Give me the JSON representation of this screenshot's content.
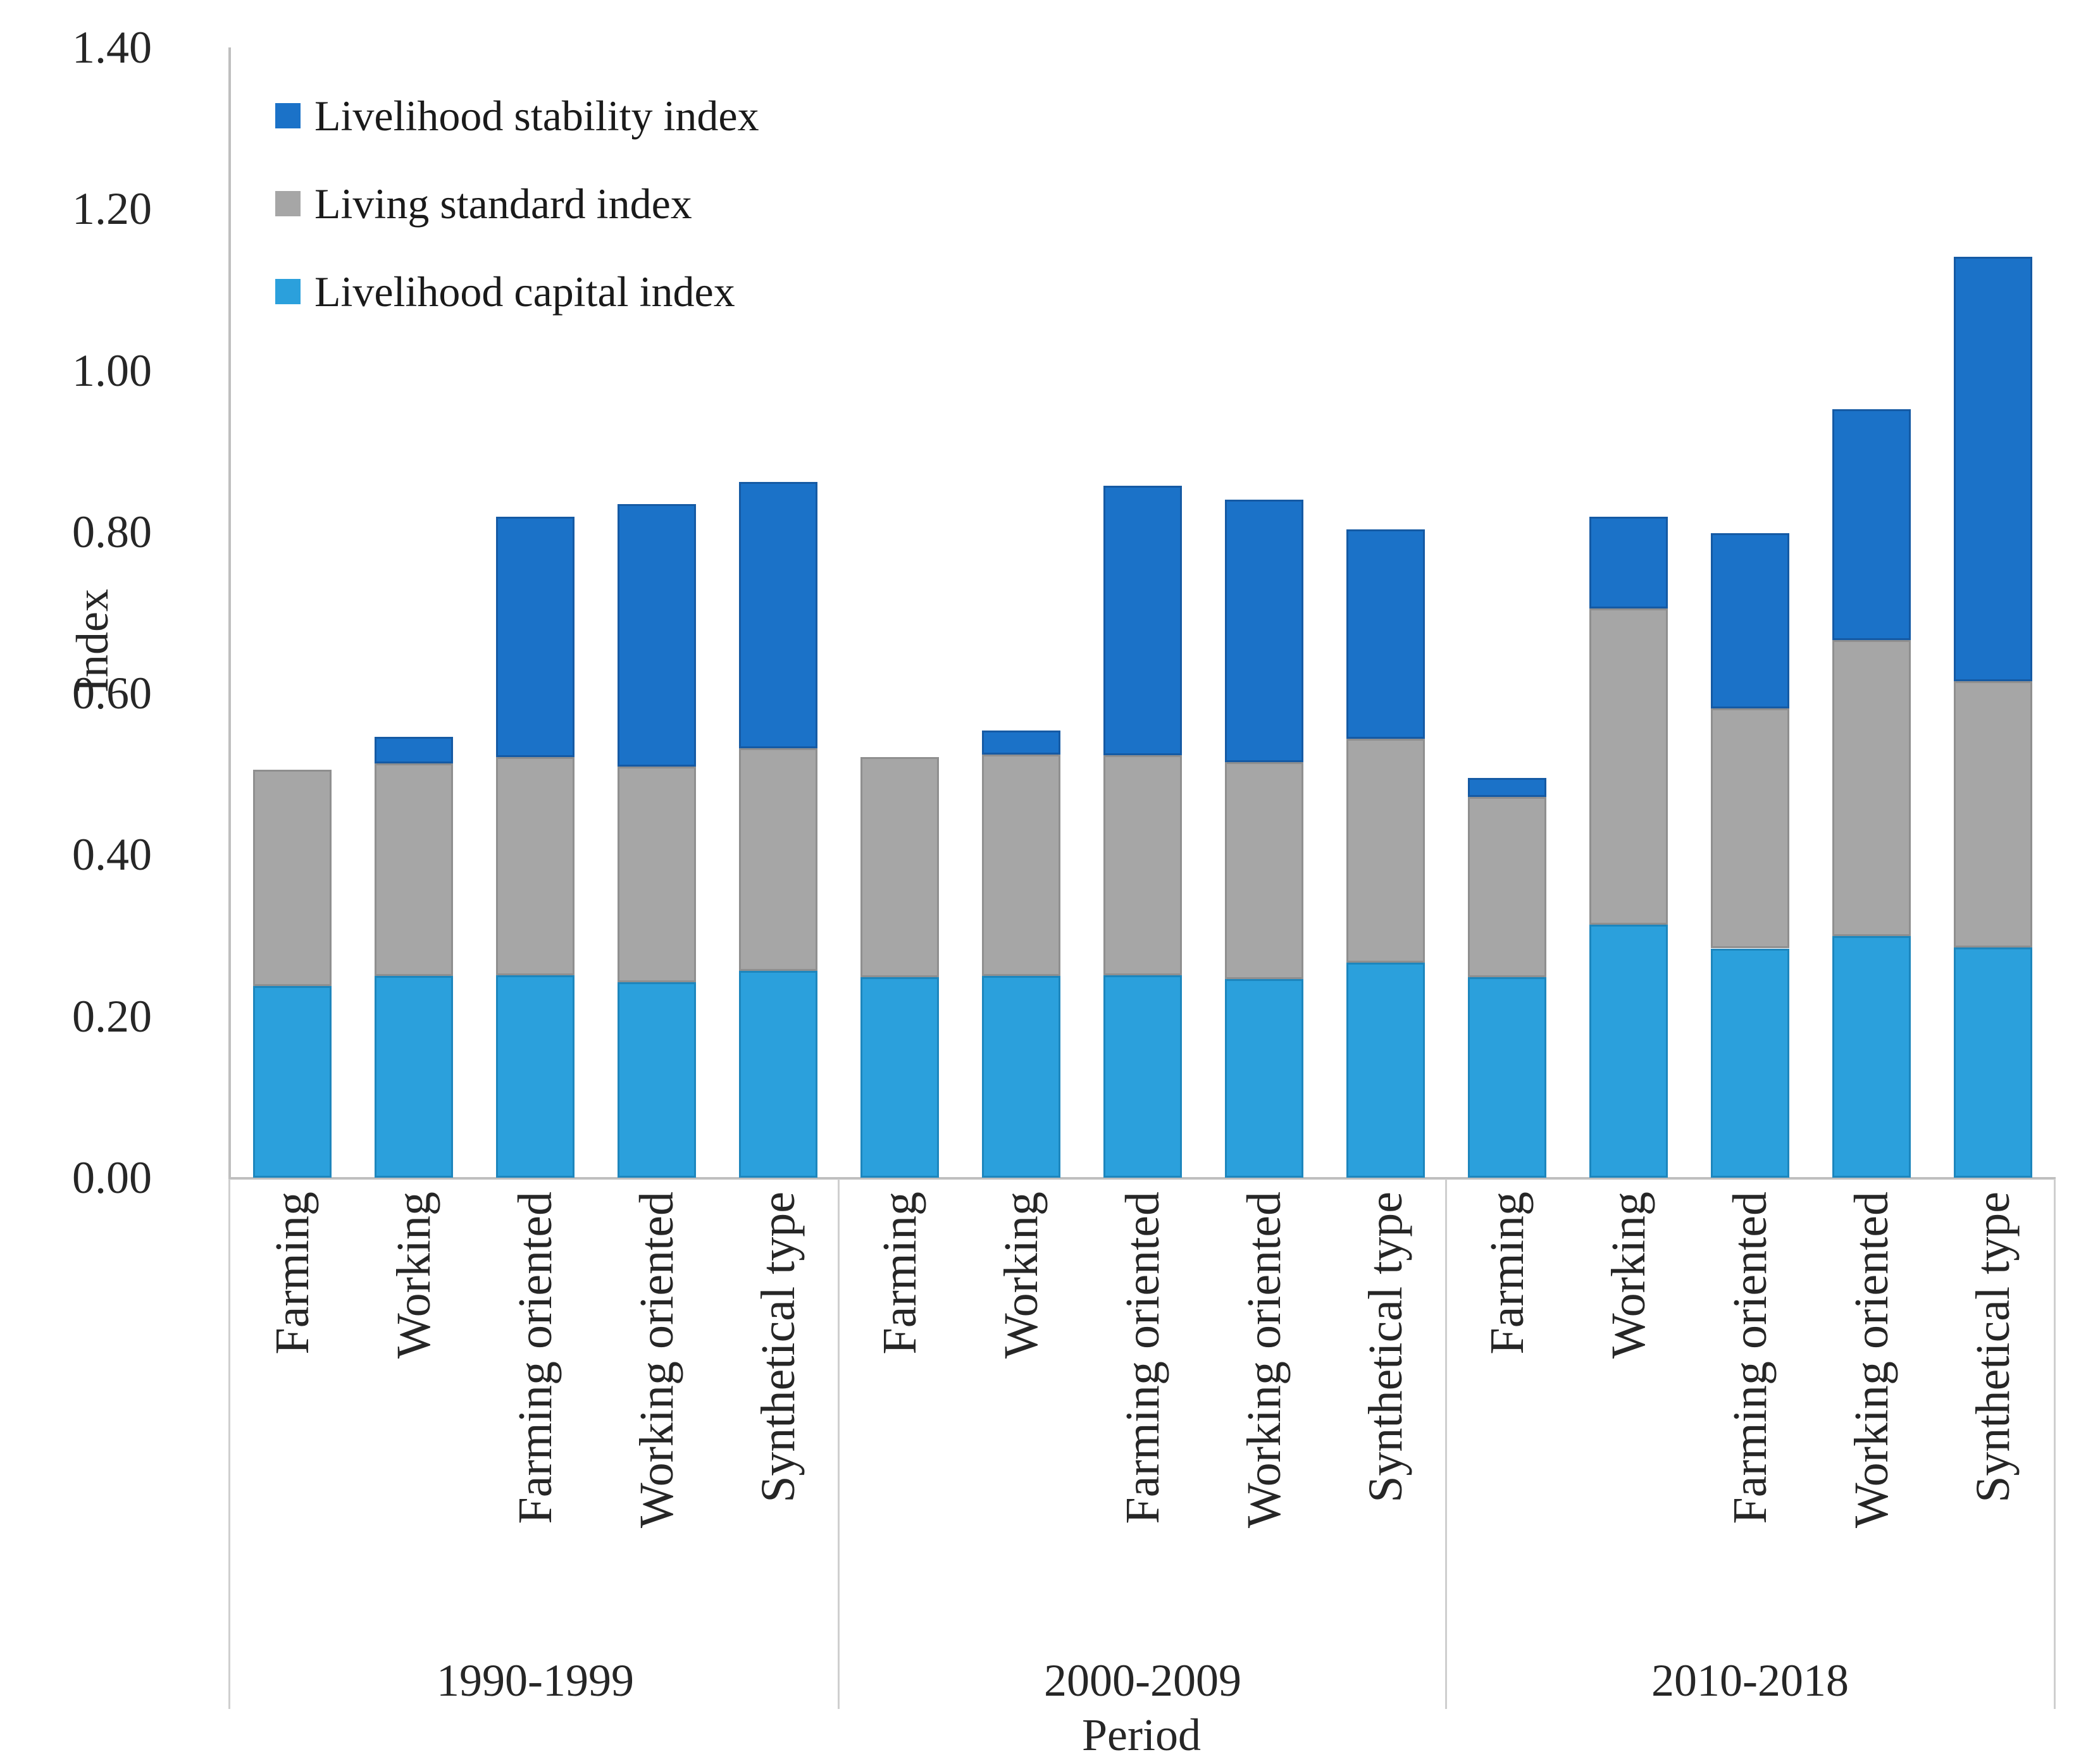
{
  "chart_data": {
    "type": "bar",
    "stacked": true,
    "title": "",
    "xlabel": "Period",
    "ylabel": "Index",
    "ylim": [
      0.0,
      1.4
    ],
    "ytick_step": 0.2,
    "ytick_labels": [
      "0.00",
      "0.20",
      "0.40",
      "0.60",
      "0.80",
      "1.00",
      "1.20",
      "1.40"
    ],
    "grid": false,
    "legend_position": "top-left-inside",
    "periods": [
      "1990-1999",
      "2000-2009",
      "2010-2018"
    ],
    "categories": [
      "Farming",
      "Working",
      "Farming oriented",
      "Working oriented",
      "Synthetical type"
    ],
    "series": [
      {
        "name": "Livelihood capital index",
        "color": "#2BA0DC",
        "border_color": "#1d86bd",
        "values": [
          [
            0.237,
            0.25,
            0.251,
            0.242,
            0.256
          ],
          [
            0.248,
            0.25,
            0.251,
            0.246,
            0.266
          ],
          [
            0.248,
            0.313,
            0.284,
            0.299,
            0.285
          ]
        ]
      },
      {
        "name": "Living standard index",
        "color": "#A6A6A6",
        "border_color": "#8f8f8f",
        "values": [
          [
            0.268,
            0.263,
            0.27,
            0.267,
            0.276
          ],
          [
            0.273,
            0.274,
            0.272,
            0.269,
            0.278
          ],
          [
            0.224,
            0.392,
            0.297,
            0.367,
            0.33
          ]
        ]
      },
      {
        "name": "Livelihood stability index",
        "color": "#1B72C8",
        "border_color": "#155aa4",
        "values": [
          [
            0.0,
            0.033,
            0.298,
            0.325,
            0.33
          ],
          [
            0.0,
            0.03,
            0.334,
            0.325,
            0.259
          ],
          [
            0.023,
            0.114,
            0.217,
            0.286,
            0.526
          ]
        ]
      }
    ],
    "stack_totals": [
      [
        0.505,
        0.546,
        0.819,
        0.834,
        0.862
      ],
      [
        0.521,
        0.554,
        0.857,
        0.84,
        0.803
      ],
      [
        0.495,
        0.819,
        0.798,
        0.952,
        1.141
      ]
    ],
    "legend_order": [
      "Livelihood stability index",
      "Living standard index",
      "Livelihood capital index"
    ]
  },
  "axes": {
    "y_title": "Index",
    "x_title": "Period"
  }
}
